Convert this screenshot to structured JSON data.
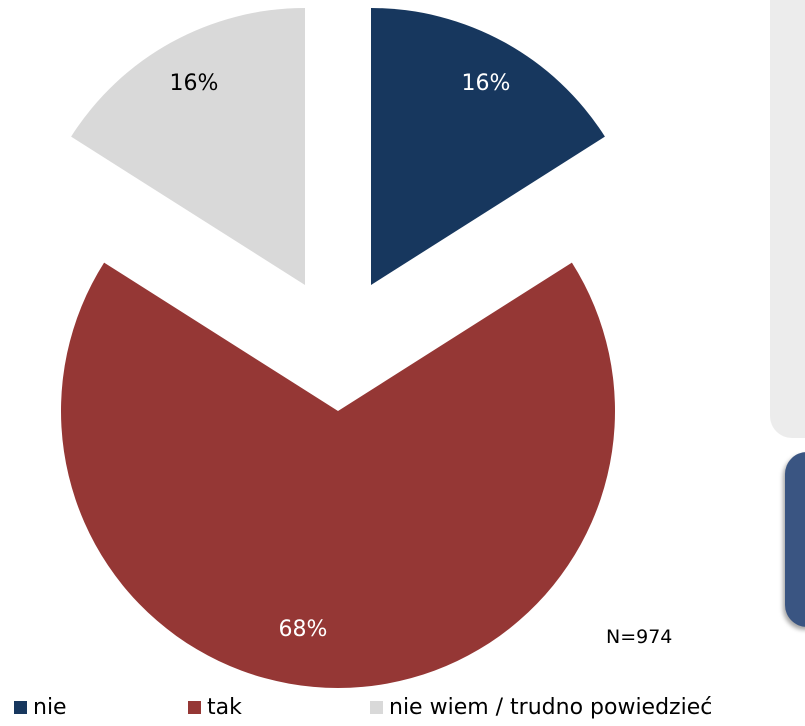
{
  "chart_data": {
    "type": "pie",
    "exploded": true,
    "slices": [
      {
        "label": "nie",
        "value": 16,
        "display": "16%",
        "color": "#17375e"
      },
      {
        "label": "tak",
        "value": 68,
        "display": "68%",
        "color": "#953735"
      },
      {
        "label": "nie wiem / trudno powiedzieć",
        "value": 16,
        "display": "16%",
        "color": "#d9d9d9"
      }
    ],
    "legend_position": "bottom",
    "note": "N=974"
  }
}
